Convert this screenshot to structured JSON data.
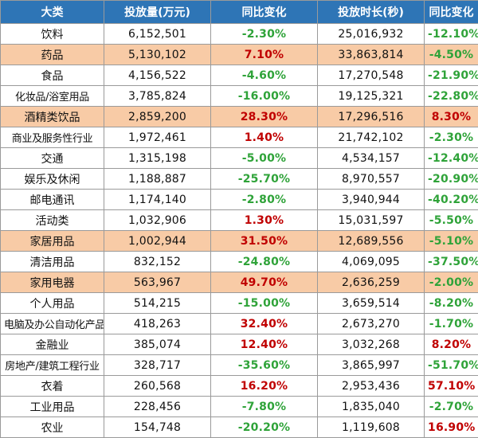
{
  "colors": {
    "header_bg": "#2e75b6",
    "header_text": "#ffffff",
    "highlight_row": "#f8cba6",
    "positive_change": "#c00000",
    "negative_change": "#2fa339"
  },
  "columns": [
    "大类",
    "投放量(万元)",
    "同比变化",
    "投放时长(秒)",
    "同比变化"
  ],
  "rows": [
    {
      "category": "饮料",
      "spend": "6,152,501",
      "spend_change": "-2.30%",
      "duration": "25,016,932",
      "duration_change": "-12.10%",
      "highlighted": false
    },
    {
      "category": "药品",
      "spend": "5,130,102",
      "spend_change": "7.10%",
      "duration": "33,863,814",
      "duration_change": "-4.50%",
      "highlighted": true
    },
    {
      "category": "食品",
      "spend": "4,156,522",
      "spend_change": "-4.60%",
      "duration": "17,270,548",
      "duration_change": "-21.90%",
      "highlighted": false
    },
    {
      "category": "化妆品/浴室用品",
      "spend": "3,785,824",
      "spend_change": "-16.00%",
      "duration": "19,125,321",
      "duration_change": "-22.80%",
      "highlighted": false
    },
    {
      "category": "酒精类饮品",
      "spend": "2,859,200",
      "spend_change": "28.30%",
      "duration": "17,296,516",
      "duration_change": "8.30%",
      "highlighted": true
    },
    {
      "category": "商业及服务性行业",
      "spend": "1,972,461",
      "spend_change": "1.40%",
      "duration": "21,742,102",
      "duration_change": "-2.30%",
      "highlighted": false
    },
    {
      "category": "交通",
      "spend": "1,315,198",
      "spend_change": "-5.00%",
      "duration": "4,534,157",
      "duration_change": "-12.40%",
      "highlighted": false
    },
    {
      "category": "娱乐及休闲",
      "spend": "1,188,887",
      "spend_change": "-25.70%",
      "duration": "8,970,557",
      "duration_change": "-20.90%",
      "highlighted": false
    },
    {
      "category": "邮电通讯",
      "spend": "1,174,140",
      "spend_change": "-2.80%",
      "duration": "3,940,944",
      "duration_change": "-40.20%",
      "highlighted": false
    },
    {
      "category": "活动类",
      "spend": "1,032,906",
      "spend_change": "1.30%",
      "duration": "15,031,597",
      "duration_change": "-5.50%",
      "highlighted": false
    },
    {
      "category": "家居用品",
      "spend": "1,002,944",
      "spend_change": "31.50%",
      "duration": "12,689,556",
      "duration_change": "-5.10%",
      "highlighted": true
    },
    {
      "category": "清洁用品",
      "spend": "832,152",
      "spend_change": "-24.80%",
      "duration": "4,069,095",
      "duration_change": "-37.50%",
      "highlighted": false
    },
    {
      "category": "家用电器",
      "spend": "563,967",
      "spend_change": "49.70%",
      "duration": "2,636,259",
      "duration_change": "-2.00%",
      "highlighted": true
    },
    {
      "category": "个人用品",
      "spend": "514,215",
      "spend_change": "-15.00%",
      "duration": "3,659,514",
      "duration_change": "-8.20%",
      "highlighted": false
    },
    {
      "category": "电脑及办公自动化产品",
      "spend": "418,263",
      "spend_change": "32.40%",
      "duration": "2,673,270",
      "duration_change": "-1.70%",
      "highlighted": false
    },
    {
      "category": "金融业",
      "spend": "385,074",
      "spend_change": "12.40%",
      "duration": "3,032,268",
      "duration_change": "8.20%",
      "highlighted": false
    },
    {
      "category": "房地产/建筑工程行业",
      "spend": "328,717",
      "spend_change": "-35.60%",
      "duration": "3,865,997",
      "duration_change": "-51.70%",
      "highlighted": false
    },
    {
      "category": "衣着",
      "spend": "260,568",
      "spend_change": "16.20%",
      "duration": "2,953,436",
      "duration_change": "57.10%",
      "highlighted": false
    },
    {
      "category": "工业用品",
      "spend": "228,456",
      "spend_change": "-7.80%",
      "duration": "1,835,040",
      "duration_change": "-2.70%",
      "highlighted": false
    },
    {
      "category": "农业",
      "spend": "154,748",
      "spend_change": "-20.20%",
      "duration": "1,119,608",
      "duration_change": "16.90%",
      "highlighted": false
    }
  ]
}
